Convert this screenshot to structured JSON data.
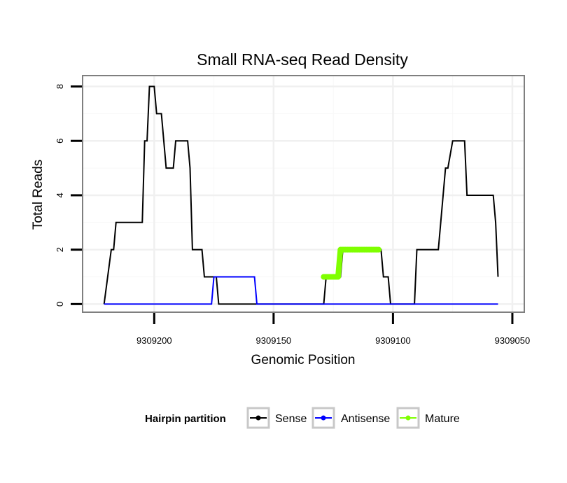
{
  "chart_data": {
    "type": "line",
    "title": "Small RNA-seq Read Density",
    "xlabel": "Genomic Position",
    "ylabel": "Total Reads",
    "x_reversed": true,
    "xlim": [
      9309230,
      9309045
    ],
    "ylim": [
      -0.3,
      8.4
    ],
    "x_ticks": [
      9309200,
      9309150,
      9309100,
      9309050
    ],
    "x_tick_labels": [
      "9309200",
      "9309150",
      "9309100",
      "9309050"
    ],
    "y_ticks": [
      0,
      2,
      4,
      6,
      8
    ],
    "y_tick_labels": [
      "0",
      "2",
      "4",
      "6",
      "8"
    ],
    "grid": true,
    "legend": {
      "title": "Hairpin partition",
      "position": "bottom",
      "entries": [
        "Sense",
        "Antisense",
        "Mature"
      ]
    },
    "series": [
      {
        "name": "Sense",
        "color": "#000000",
        "x": [
          9309221,
          9309218,
          9309217,
          9309216,
          9309215,
          9309205,
          9309204,
          9309203,
          9309202,
          9309201,
          9309200,
          9309199,
          9309198,
          9309197,
          9309195,
          9309194,
          9309192,
          9309191,
          9309190,
          9309186,
          9309185,
          9309184,
          9309180,
          9309179,
          9309175,
          9309174,
          9309173,
          9309129,
          9309128,
          9309122,
          9309121,
          9309105,
          9309104,
          9309102,
          9309101,
          9309091,
          9309090,
          9309081,
          9309080,
          9309078,
          9309077,
          9309075,
          9309074,
          9309070,
          9309069,
          9309059,
          9309058,
          9309057,
          9309056
        ],
        "y": [
          0,
          2,
          2,
          3,
          3,
          3,
          6,
          6,
          8,
          8,
          8,
          7,
          7,
          7,
          5,
          5,
          5,
          6,
          6,
          6,
          5,
          2,
          2,
          1,
          1,
          1,
          0,
          0,
          1,
          1,
          2,
          2,
          1,
          1,
          0,
          0,
          2,
          2,
          3,
          5,
          5,
          6,
          6,
          6,
          4,
          4,
          4,
          3,
          1
        ]
      },
      {
        "name": "Antisense",
        "color": "#0000ff",
        "x": [
          9309221,
          9309176,
          9309175,
          9309172,
          9309158,
          9309157,
          9309056
        ],
        "y": [
          0,
          0,
          1,
          1,
          1,
          0,
          0
        ]
      },
      {
        "name": "Mature",
        "color": "#7fff00",
        "x": [
          9309129,
          9309128,
          9309127,
          9309126,
          9309125,
          9309124,
          9309123,
          9309122,
          9309121,
          9309120,
          9309119,
          9309118,
          9309117,
          9309116,
          9309115,
          9309114,
          9309113,
          9309112,
          9309111,
          9309110,
          9309109,
          9309108,
          9309107,
          9309106
        ],
        "y": [
          1,
          1,
          1,
          1,
          1,
          1,
          1,
          2,
          2,
          2,
          2,
          2,
          2,
          2,
          2,
          2,
          2,
          2,
          2,
          2,
          2,
          2,
          2,
          2
        ]
      }
    ]
  }
}
